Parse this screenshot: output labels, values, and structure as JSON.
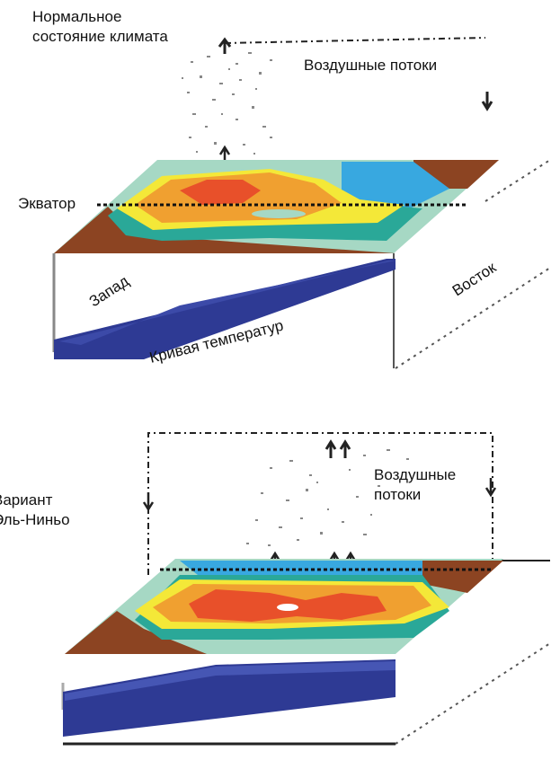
{
  "diagram": {
    "top_panel": {
      "title_line1": "Нормальное",
      "title_line2": "состояние климата",
      "air_flows": "Воздушные потоки",
      "equator": "Экватор",
      "west": "Запад",
      "east": "Восток",
      "thermocline": "Кривая температур"
    },
    "bottom_panel": {
      "title_line1": "Вариант",
      "title_line2": "Эль-Ниньо",
      "air_flows_line1": "Воздушные",
      "air_flows_line2": "потоки"
    }
  },
  "colors": {
    "warm_core": "#e8502a",
    "warm": "#f0a030",
    "mild": "#f4e838",
    "cool": "#a6d8c4",
    "teal": "#2aa898",
    "cold": "#38a8e0",
    "land": "#8c4422",
    "thermocline": "#2e3a94"
  }
}
